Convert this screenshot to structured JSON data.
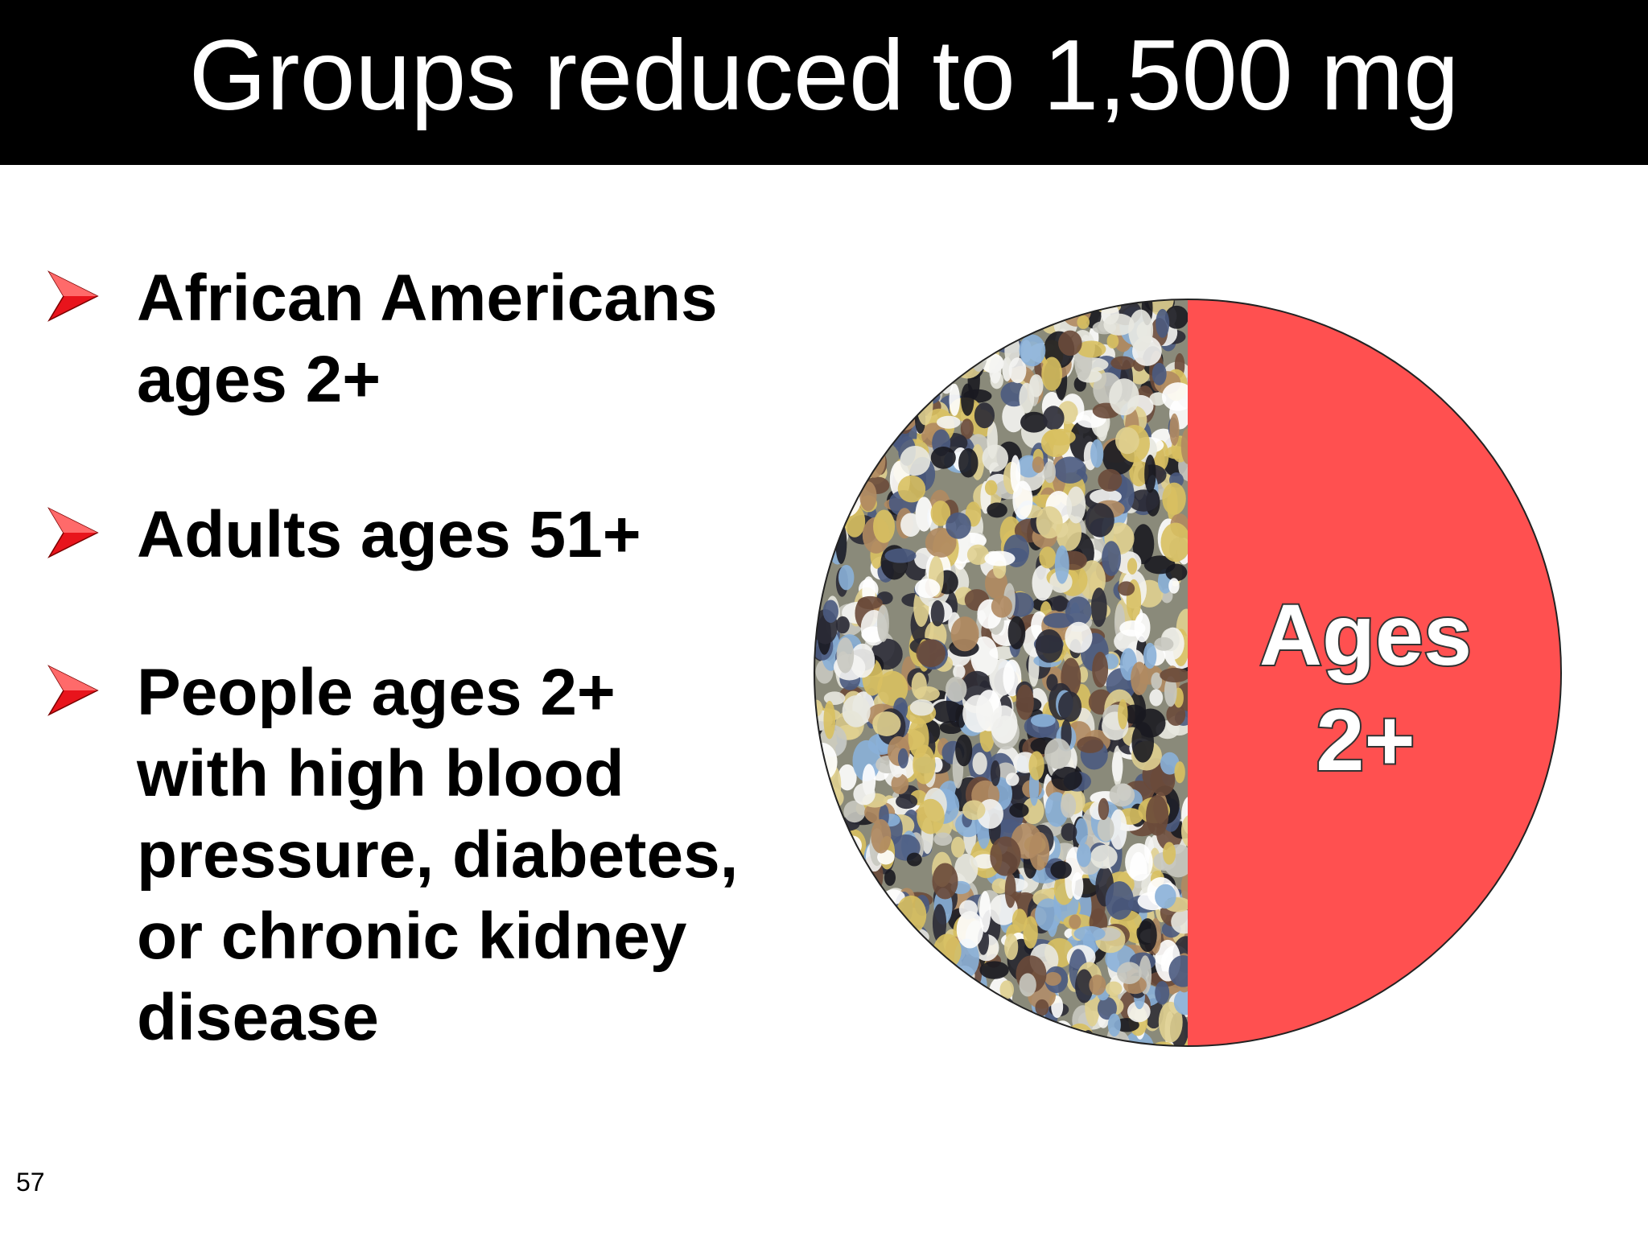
{
  "header": {
    "title": "Groups reduced to 1,500 mg"
  },
  "bullets": [
    {
      "lines": [
        "African Americans",
        "ages 2+"
      ]
    },
    {
      "lines": [
        "Adults ages 51+"
      ]
    },
    {
      "lines": [
        "People ages 2+",
        "with high blood",
        "pressure, diabetes,",
        "or chronic kidney",
        "disease"
      ]
    }
  ],
  "pie": {
    "label_lines": [
      "Ages",
      "2+"
    ]
  },
  "page_number": "57"
}
